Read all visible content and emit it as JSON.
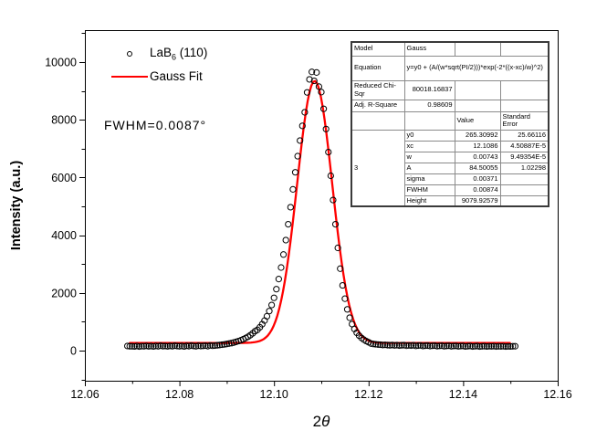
{
  "chart_data": {
    "type": "scatter",
    "title": "",
    "xlabel_parts": {
      "prefix": "2",
      "theta": "θ"
    },
    "ylabel": "Intensity (a.u.)",
    "xlim": [
      12.06,
      12.16
    ],
    "ylim": [
      -1050,
      11100
    ],
    "grid": false,
    "x_major_ticks": [
      12.06,
      12.08,
      12.1,
      12.12,
      12.14,
      12.16
    ],
    "x_major_tick_labels": [
      "12.06",
      "12.08",
      "12.10",
      "12.12",
      "12.14",
      "12.16"
    ],
    "x_minor_ticks": [
      12.07,
      12.09,
      12.11,
      12.13,
      12.15
    ],
    "y_major_ticks": [
      0,
      2000,
      4000,
      6000,
      8000,
      10000
    ],
    "y_major_tick_labels": [
      "0",
      "2000",
      "4000",
      "6000",
      "8000",
      "10000"
    ],
    "y_minor_ticks": [
      -1000,
      1000,
      3000,
      5000,
      7000,
      9000,
      11000
    ],
    "legend_position": "top-left-inside",
    "series": [
      {
        "name": "LaB6 (110)",
        "type": "scatter",
        "marker": "open-circle",
        "color": "#000000",
        "x_start": 12.069,
        "x_step": 0.0005,
        "y": [
          160,
          150,
          150,
          145,
          160,
          140,
          155,
          150,
          165,
          148,
          158,
          145,
          162,
          150,
          170,
          155,
          160,
          148,
          165,
          152,
          172,
          158,
          150,
          162,
          145,
          168,
          155,
          175,
          160,
          150,
          170,
          158,
          165,
          172,
          155,
          180,
          168,
          175,
          185,
          195,
          205,
          215,
          230,
          245,
          260,
          280,
          305,
          330,
          360,
          395,
          435,
          480,
          535,
          600,
          675,
          720,
          810,
          915,
          1040,
          1190,
          1370,
          1580,
          1830,
          2130,
          2480,
          2880,
          3330,
          3830,
          4380,
          4970,
          5590,
          6180,
          6740,
          7280,
          7790,
          8260,
          8950,
          9400,
          9660,
          9350,
          9640,
          9150,
          8960,
          8380,
          7680,
          6880,
          6060,
          5220,
          4380,
          3560,
          2840,
          2260,
          1800,
          1430,
          1140,
          920,
          750,
          620,
          520,
          440,
          380,
          330,
          290,
          245,
          230,
          220,
          210,
          205,
          195,
          200,
          190,
          185,
          195,
          180,
          190,
          175,
          185,
          190,
          170,
          180,
          175,
          185,
          165,
          175,
          180,
          160,
          170,
          175,
          158,
          168,
          172,
          155,
          165,
          170,
          152,
          162,
          168,
          150,
          160,
          165,
          148,
          158,
          162,
          145,
          155,
          160,
          142,
          152,
          158,
          140,
          150,
          155,
          145,
          152,
          148,
          155,
          142,
          150,
          146,
          152,
          140,
          148,
          144,
          150,
          152
        ]
      },
      {
        "name": "Gauss Fit",
        "type": "line",
        "color": "#ff0000",
        "x_range": [
          12.0695,
          12.15
        ],
        "gauss_params": {
          "y0": 265.30992,
          "xc": 12.1086,
          "w": 0.00743,
          "height": 9079.92579
        }
      }
    ]
  },
  "legend": {
    "entries": [
      {
        "prefix": "LaB",
        "subscript": "6",
        "suffix": " (110)"
      },
      {
        "label": "Gauss Fit"
      }
    ]
  },
  "annotation": {
    "fwhm_label": "FWHM=0.0087°"
  },
  "stats_table": {
    "info_rows": [
      {
        "label": "Model",
        "value": "Gauss",
        "merged": false,
        "align": "left"
      },
      {
        "label": "Equation",
        "value": "y=y0 + (A/(w*sqrt(PI/2)))*exp(-2*((x-xc)/w)^2)",
        "merged": true,
        "align": "left"
      },
      {
        "label": "Reduced Chi-Sqr",
        "value": "80018.16837",
        "merged": false,
        "align": "right"
      },
      {
        "label": "Adj. R-Square",
        "value": "0.98609",
        "merged": false,
        "align": "right"
      }
    ],
    "col_headers": [
      "",
      "",
      "Value",
      "Standard Error"
    ],
    "dataset_label": "3",
    "params": [
      {
        "name": "y0",
        "value": "265.30992",
        "error": "25.66116"
      },
      {
        "name": "xc",
        "value": "12.1086",
        "error": "4.50887E-5"
      },
      {
        "name": "w",
        "value": "0.00743",
        "error": "9.49354E-5"
      },
      {
        "name": "A",
        "value": "84.50055",
        "error": "1.02298"
      },
      {
        "name": "sigma",
        "value": "0.00371",
        "error": ""
      },
      {
        "name": "FWHM",
        "value": "0.00874",
        "error": ""
      },
      {
        "name": "Height",
        "value": "9079.92579",
        "error": ""
      }
    ]
  },
  "colors": {
    "fit_line": "#ff0000",
    "marker_stroke": "#000000",
    "axis": "#000000",
    "text": "#000000"
  }
}
